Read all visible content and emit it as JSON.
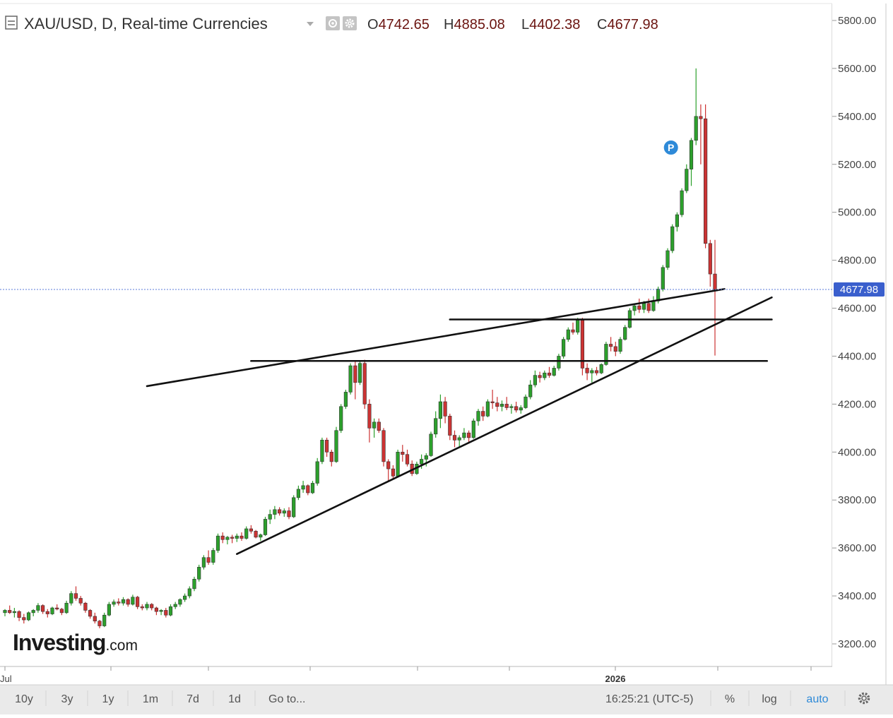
{
  "header": {
    "title": "XAU/USD, D, Real-time Currencies",
    "ohlc": [
      {
        "key": "O",
        "value": "4742.65"
      },
      {
        "key": "H",
        "value": "4885.08"
      },
      {
        "key": "L",
        "value": "4402.38"
      },
      {
        "key": "C",
        "value": "4677.98"
      }
    ]
  },
  "watermark": {
    "brand": "Investing",
    "suffix": ".com"
  },
  "price_axis": {
    "ticks": [
      "5800.00",
      "5600.00",
      "5400.00",
      "5200.00",
      "5000.00",
      "4800.00",
      "4600.00",
      "4400.00",
      "4200.00",
      "4000.00",
      "3800.00",
      "3600.00",
      "3400.00",
      "3200.00"
    ],
    "last_price_label": "4677.98"
  },
  "time_axis": {
    "labels": [
      {
        "text": "Jul",
        "bold": false
      },
      {
        "text": "2026",
        "bold": true
      }
    ]
  },
  "marker": {
    "label": "P"
  },
  "toolbar": {
    "ranges": [
      "10y",
      "3y",
      "1y",
      "1m",
      "7d",
      "1d",
      "Go to..."
    ],
    "time": "16:25:21 (UTC-5)",
    "percent": "%",
    "log": "log",
    "auto": "auto"
  },
  "chart_data": {
    "type": "candlestick",
    "symbol": "XAU/USD",
    "interval": "D",
    "ylim": [
      3150,
      5850
    ],
    "y_scale": "linear",
    "grid": false,
    "colors": {
      "up": "#2ca02c",
      "down": "#cc3333",
      "last_price_line": "#3a5fcd",
      "last_price_badge": "#3a5fcd"
    },
    "last_price": 4677.98,
    "candles": [
      [
        3330,
        3345,
        3315,
        3340
      ],
      [
        3340,
        3360,
        3325,
        3330
      ],
      [
        3330,
        3350,
        3310,
        3335
      ],
      [
        3335,
        3340,
        3295,
        3310
      ],
      [
        3310,
        3325,
        3285,
        3300
      ],
      [
        3300,
        3335,
        3295,
        3330
      ],
      [
        3330,
        3345,
        3315,
        3340
      ],
      [
        3340,
        3370,
        3330,
        3360
      ],
      [
        3360,
        3365,
        3325,
        3335
      ],
      [
        3335,
        3345,
        3310,
        3325
      ],
      [
        3325,
        3355,
        3320,
        3350
      ],
      [
        3350,
        3365,
        3340,
        3345
      ],
      [
        3345,
        3350,
        3320,
        3330
      ],
      [
        3330,
        3380,
        3325,
        3370
      ],
      [
        3370,
        3420,
        3360,
        3410
      ],
      [
        3410,
        3440,
        3380,
        3390
      ],
      [
        3390,
        3400,
        3360,
        3370
      ],
      [
        3370,
        3375,
        3330,
        3340
      ],
      [
        3340,
        3345,
        3305,
        3315
      ],
      [
        3315,
        3330,
        3285,
        3295
      ],
      [
        3295,
        3300,
        3265,
        3275
      ],
      [
        3275,
        3330,
        3270,
        3320
      ],
      [
        3320,
        3375,
        3315,
        3365
      ],
      [
        3365,
        3385,
        3355,
        3375
      ],
      [
        3375,
        3390,
        3360,
        3370
      ],
      [
        3370,
        3395,
        3360,
        3385
      ],
      [
        3385,
        3390,
        3355,
        3365
      ],
      [
        3365,
        3405,
        3360,
        3395
      ],
      [
        3395,
        3400,
        3345,
        3355
      ],
      [
        3355,
        3365,
        3340,
        3350
      ],
      [
        3350,
        3375,
        3340,
        3365
      ],
      [
        3365,
        3370,
        3340,
        3350
      ],
      [
        3350,
        3355,
        3320,
        3335
      ],
      [
        3335,
        3345,
        3320,
        3340
      ],
      [
        3340,
        3350,
        3310,
        3320
      ],
      [
        3320,
        3365,
        3315,
        3355
      ],
      [
        3355,
        3375,
        3345,
        3365
      ],
      [
        3365,
        3390,
        3355,
        3385
      ],
      [
        3385,
        3410,
        3375,
        3400
      ],
      [
        3400,
        3440,
        3390,
        3430
      ],
      [
        3430,
        3480,
        3420,
        3470
      ],
      [
        3470,
        3530,
        3460,
        3520
      ],
      [
        3520,
        3570,
        3510,
        3560
      ],
      [
        3560,
        3590,
        3530,
        3540
      ],
      [
        3540,
        3600,
        3530,
        3590
      ],
      [
        3590,
        3660,
        3580,
        3650
      ],
      [
        3650,
        3665,
        3620,
        3635
      ],
      [
        3635,
        3650,
        3615,
        3645
      ],
      [
        3645,
        3655,
        3620,
        3640
      ],
      [
        3640,
        3660,
        3625,
        3650
      ],
      [
        3650,
        3665,
        3630,
        3640
      ],
      [
        3640,
        3690,
        3635,
        3680
      ],
      [
        3680,
        3695,
        3660,
        3670
      ],
      [
        3670,
        3675,
        3640,
        3645
      ],
      [
        3645,
        3660,
        3630,
        3655
      ],
      [
        3655,
        3730,
        3650,
        3720
      ],
      [
        3720,
        3760,
        3700,
        3740
      ],
      [
        3740,
        3775,
        3720,
        3760
      ],
      [
        3760,
        3770,
        3735,
        3745
      ],
      [
        3745,
        3765,
        3730,
        3755
      ],
      [
        3755,
        3770,
        3720,
        3730
      ],
      [
        3730,
        3820,
        3725,
        3810
      ],
      [
        3810,
        3860,
        3800,
        3845
      ],
      [
        3845,
        3880,
        3830,
        3860
      ],
      [
        3860,
        3865,
        3820,
        3830
      ],
      [
        3830,
        3880,
        3825,
        3870
      ],
      [
        3870,
        3975,
        3860,
        3960
      ],
      [
        3960,
        4060,
        3950,
        4050
      ],
      [
        4050,
        4060,
        3980,
        4000
      ],
      [
        4000,
        4010,
        3940,
        3960
      ],
      [
        3960,
        4105,
        3955,
        4090
      ],
      [
        4090,
        4200,
        4080,
        4190
      ],
      [
        4190,
        4260,
        4180,
        4250
      ],
      [
        4250,
        4370,
        4240,
        4360
      ],
      [
        4360,
        4380,
        4220,
        4290
      ],
      [
        4290,
        4380,
        4280,
        4370
      ],
      [
        4370,
        4385,
        4180,
        4200
      ],
      [
        4200,
        4220,
        4040,
        4100
      ],
      [
        4100,
        4140,
        4060,
        4125
      ],
      [
        4125,
        4140,
        4080,
        4090
      ],
      [
        4090,
        4100,
        3940,
        3960
      ],
      [
        3960,
        3970,
        3880,
        3930
      ],
      [
        3930,
        3945,
        3890,
        3900
      ],
      [
        3900,
        4010,
        3895,
        4000
      ],
      [
        4000,
        4030,
        3960,
        3990
      ],
      [
        3990,
        4010,
        3940,
        3950
      ],
      [
        3950,
        3965,
        3900,
        3910
      ],
      [
        3910,
        3960,
        3905,
        3950
      ],
      [
        3950,
        3990,
        3930,
        3970
      ],
      [
        3970,
        3995,
        3940,
        3985
      ],
      [
        3985,
        4085,
        3980,
        4075
      ],
      [
        4075,
        4170,
        4060,
        4140
      ],
      [
        4140,
        4240,
        4100,
        4210
      ],
      [
        4210,
        4230,
        4120,
        4150
      ],
      [
        4150,
        4160,
        4050,
        4070
      ],
      [
        4070,
        4090,
        4020,
        4050
      ],
      [
        4050,
        4070,
        4020,
        4060
      ],
      [
        4060,
        4100,
        4050,
        4080
      ],
      [
        4080,
        4090,
        4040,
        4060
      ],
      [
        4060,
        4140,
        4055,
        4130
      ],
      [
        4130,
        4180,
        4110,
        4170
      ],
      [
        4170,
        4190,
        4130,
        4150
      ],
      [
        4150,
        4220,
        4145,
        4210
      ],
      [
        4210,
        4260,
        4180,
        4205
      ],
      [
        4205,
        4230,
        4170,
        4190
      ],
      [
        4190,
        4215,
        4170,
        4200
      ],
      [
        4200,
        4230,
        4175,
        4185
      ],
      [
        4185,
        4200,
        4160,
        4190
      ],
      [
        4190,
        4210,
        4165,
        4175
      ],
      [
        4175,
        4195,
        4160,
        4185
      ],
      [
        4185,
        4240,
        4180,
        4230
      ],
      [
        4230,
        4300,
        4220,
        4280
      ],
      [
        4280,
        4340,
        4270,
        4320
      ],
      [
        4320,
        4335,
        4290,
        4310
      ],
      [
        4310,
        4340,
        4300,
        4330
      ],
      [
        4330,
        4355,
        4310,
        4320
      ],
      [
        4320,
        4360,
        4315,
        4350
      ],
      [
        4350,
        4410,
        4340,
        4400
      ],
      [
        4400,
        4480,
        4390,
        4470
      ],
      [
        4470,
        4520,
        4460,
        4510
      ],
      [
        4510,
        4540,
        4490,
        4500
      ],
      [
        4500,
        4560,
        4490,
        4550
      ],
      [
        4550,
        4560,
        4320,
        4350
      ],
      [
        4350,
        4370,
        4300,
        4330
      ],
      [
        4330,
        4350,
        4290,
        4340
      ],
      [
        4340,
        4355,
        4320,
        4330
      ],
      [
        4330,
        4370,
        4325,
        4365
      ],
      [
        4365,
        4460,
        4360,
        4450
      ],
      [
        4450,
        4480,
        4420,
        4440
      ],
      [
        4440,
        4460,
        4400,
        4420
      ],
      [
        4420,
        4480,
        4410,
        4470
      ],
      [
        4470,
        4530,
        4465,
        4520
      ],
      [
        4520,
        4600,
        4515,
        4590
      ],
      [
        4590,
        4620,
        4570,
        4610
      ],
      [
        4610,
        4640,
        4580,
        4595
      ],
      [
        4595,
        4630,
        4580,
        4620
      ],
      [
        4620,
        4640,
        4580,
        4590
      ],
      [
        4590,
        4650,
        4585,
        4630
      ],
      [
        4630,
        4690,
        4620,
        4680
      ],
      [
        4680,
        4780,
        4670,
        4770
      ],
      [
        4770,
        4850,
        4760,
        4840
      ],
      [
        4840,
        4950,
        4830,
        4940
      ],
      [
        4940,
        5000,
        4920,
        4990
      ],
      [
        4990,
        5100,
        4980,
        5090
      ],
      [
        5090,
        5200,
        5080,
        5180
      ],
      [
        5180,
        5310,
        5110,
        5300
      ],
      [
        5300,
        5600,
        5280,
        5400
      ],
      [
        5400,
        5450,
        5200,
        5390
      ],
      [
        5390,
        5450,
        4850,
        4870
      ],
      [
        4870,
        4885,
        4690,
        4742.65
      ],
      [
        4742.65,
        4885.08,
        4402.38,
        4677.98
      ]
    ],
    "trendlines": [
      {
        "label": "upper rising line",
        "points": [
          [
            30,
            4275
          ],
          [
            152,
            4680
          ]
        ]
      },
      {
        "label": "lower rising line",
        "points": [
          [
            49,
            3575
          ],
          [
            162,
            4645
          ]
        ]
      },
      {
        "label": "horizontal resistance",
        "points": [
          [
            52,
            4380
          ],
          [
            161,
            4380
          ]
        ]
      },
      {
        "label": "horizontal support",
        "points": [
          [
            94,
            4553
          ],
          [
            162,
            4553
          ]
        ]
      }
    ],
    "annotations": [
      {
        "type": "marker",
        "text": "P",
        "x": 141,
        "y": 5270
      }
    ]
  }
}
